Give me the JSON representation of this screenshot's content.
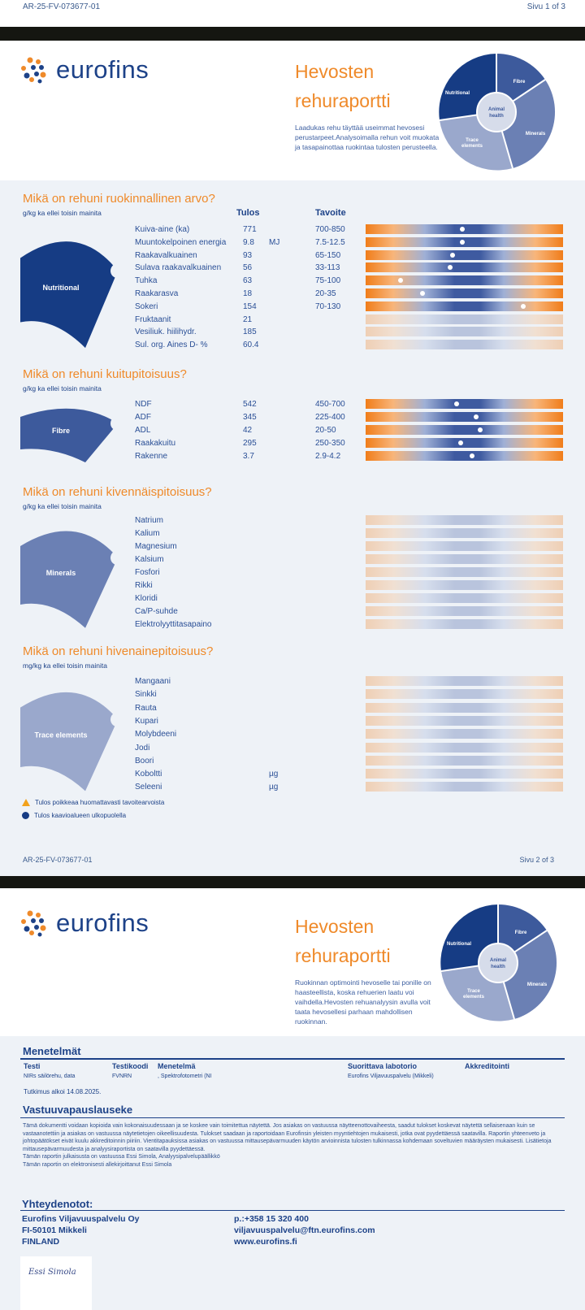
{
  "page1_header": {
    "doc_id": "AR-25-FV-073677-01",
    "page": "Sivu 1 of 3"
  },
  "logo_text": "eurofins",
  "puzzle": {
    "nutritional": "Nutritional",
    "fibre": "Fibre",
    "animal_health_1": "Animal",
    "animal_health_2": "health",
    "minerals": "Minerals",
    "trace_1": "Trace",
    "trace_2": "elements"
  },
  "page2": {
    "title_1": "Hevosten",
    "title_2": "rehuraportti",
    "description": "Laadukas rehu täyttää useimmat hevosesi perustarpeet.Analysoimalla rehun voit muokata ja tasapainottaa ruokintaa tulosten perusteella.",
    "col_result": "Tulos",
    "col_target": "Tavoite",
    "colors": {
      "orange": "#f07d1a",
      "blue": "#3e5aa0"
    },
    "sections": [
      {
        "heading": "Mikä on rehuni ruokinnallinen arvo?",
        "unit_note": "g/kg ka ellei toisin mainita",
        "piece": "Nutritional",
        "rows": [
          {
            "name": "Kuiva-aine (ka)",
            "result": "771",
            "unit": "",
            "target": "700-850",
            "marker": 0.49
          },
          {
            "name": "Muuntokelpoinen energia",
            "result": "9.8",
            "unit": "MJ",
            "target": "7.5-12.5",
            "marker": 0.49
          },
          {
            "name": "Raakavalkuainen",
            "result": "93",
            "unit": "",
            "target": "65-150",
            "marker": 0.44
          },
          {
            "name": "Sulava raakavalkuainen",
            "result": "56",
            "unit": "",
            "target": "33-113",
            "marker": 0.43
          },
          {
            "name": "Tuhka",
            "result": "63",
            "unit": "",
            "target": "75-100",
            "marker": 0.175
          },
          {
            "name": "Raakarasva",
            "result": "18",
            "unit": "",
            "target": "20-35",
            "marker": 0.29
          },
          {
            "name": "Sokeri",
            "result": "154",
            "unit": "",
            "target": "70-130",
            "marker": 0.8
          },
          {
            "name": "Fruktaanit",
            "result": "21",
            "unit": "",
            "target": ""
          },
          {
            "name": "Vesiliuk. hiilihydr.",
            "result": "185",
            "unit": "",
            "target": ""
          },
          {
            "name": "Sul. org. Aines D- %",
            "result": "60.4",
            "unit": "",
            "target": ""
          }
        ]
      },
      {
        "heading": "Mikä on rehuni kuitupitoisuus?",
        "unit_note": "g/kg ka ellei toisin mainita",
        "piece": "Fibre",
        "rows": [
          {
            "name": "NDF",
            "result": "542",
            "unit": "",
            "target": "450-700",
            "marker": 0.46
          },
          {
            "name": "ADF",
            "result": "345",
            "unit": "",
            "target": "225-400",
            "marker": 0.56
          },
          {
            "name": "ADL",
            "result": "42",
            "unit": "",
            "target": "20-50",
            "marker": 0.58
          },
          {
            "name": "Raakakuitu",
            "result": "295",
            "unit": "",
            "target": "250-350",
            "marker": 0.48
          },
          {
            "name": "Rakenne",
            "result": "3.7",
            "unit": "",
            "target": "2.9-4.2",
            "marker": 0.54
          }
        ]
      },
      {
        "heading": "Mikä on rehuni kivennäispitoisuus?",
        "unit_note": "g/kg ka ellei toisin mainita",
        "piece": "Minerals",
        "rows": [
          {
            "name": "Natrium",
            "result": "",
            "unit": "",
            "target": ""
          },
          {
            "name": "Kalium",
            "result": "",
            "unit": "",
            "target": ""
          },
          {
            "name": "Magnesium",
            "result": "",
            "unit": "",
            "target": ""
          },
          {
            "name": "Kalsium",
            "result": "",
            "unit": "",
            "target": ""
          },
          {
            "name": "Fosfori",
            "result": "",
            "unit": "",
            "target": ""
          },
          {
            "name": "Rikki",
            "result": "",
            "unit": "",
            "target": ""
          },
          {
            "name": "Kloridi",
            "result": "",
            "unit": "",
            "target": ""
          },
          {
            "name": "Ca/P-suhde",
            "result": "",
            "unit": "",
            "target": ""
          },
          {
            "name": "Elektrolyyttitasapaino",
            "result": "",
            "unit": "",
            "target": ""
          }
        ]
      },
      {
        "heading": "Mikä on rehuni hivenainepitoisuus?",
        "unit_note": "mg/kg ka ellei toisin mainita",
        "piece": "Trace elements",
        "rows": [
          {
            "name": "Mangaani",
            "result": "",
            "unit": "",
            "target": ""
          },
          {
            "name": "Sinkki",
            "result": "",
            "unit": "",
            "target": ""
          },
          {
            "name": "Rauta",
            "result": "",
            "unit": "",
            "target": ""
          },
          {
            "name": "Kupari",
            "result": "",
            "unit": "",
            "target": ""
          },
          {
            "name": "Molybdeeni",
            "result": "",
            "unit": "",
            "target": ""
          },
          {
            "name": "Jodi",
            "result": "",
            "unit": "",
            "target": ""
          },
          {
            "name": "Boori",
            "result": "",
            "unit": "",
            "target": ""
          },
          {
            "name": "Koboltti",
            "result": "",
            "unit": "µg",
            "target": ""
          },
          {
            "name": "Seleeni",
            "result": "",
            "unit": "µg",
            "target": ""
          }
        ]
      }
    ],
    "legend": {
      "warning": "Tulos poikkeaa huomattavasti tavoitearvoista",
      "outside": "Tulos kaavioalueen ulkopuolella"
    },
    "footer_id": "AR-25-FV-073677-01",
    "footer_page": "Sivu 2 of 3"
  },
  "page3": {
    "title_1": "Hevosten",
    "title_2": "rehuraportti",
    "description": "Ruokinnan optimointi hevoselle tai ponille on haasteellista, koska rehuerien laatu voi vaihdella.Hevosten rehuanalyysin avulla voit taata hevosellesi parhaan mahdollisen ruokinnan.",
    "methods": {
      "heading": "Menetelmät",
      "col_test": "Testi",
      "col_code": "Testikoodi",
      "col_method": "Menetelmä",
      "col_lab": "Suorittava labotorio",
      "col_accr": "Akkreditointi",
      "test": "NIRs säilörehu, data",
      "code": "FVNRN",
      "method": ", Spektrofotometri (NI",
      "lab": "Eurofins Viljavuuspalvelu (Mikkeli)",
      "accr": "",
      "started": "Tutkimus alkoi 14.08.2025."
    },
    "disclaimer": {
      "heading": "Vastuuvapauslauseke",
      "text": "Tämä dokumentti voidaan kopioida vain kokonaisuudessaan ja se koskee vain toimitettua näytettä. Jos asiakas on vastuussa näytteenottovaiheesta, saadut tulokset koskevat näytettä sellaisenaan kuin se vastaanotettiin ja asiakas on vastuussa näytetietojen oikeellisuudesta. Tulokset saadaan ja raportoidaan Eurofinsin yleisten myyntiehtojen mukaisesti, jotka ovat pyydettäessä saatavilla. Raportin yhteenveto ja johtopäätökset eivät kuulu akkreditoinnin piiriin. Vientitapauksissa asiakas on vastuussa mittausepävarmuuden käytön arvioinnista tulosten tulkinnassa kohdemaan soveltuvien määräysten mukaisesti. Lisätietoja mittausepävarmuudesta ja analyysiraportista on saatavilla pyydettäessä.",
      "line2": "Tämän raportin julkaisusta on vastuussa  Essi Simola, Analyysipalvelupäällikkö",
      "line3": "Tämän raportin on elektronisesti allekirjoittanut Essi Simola"
    },
    "contacts": {
      "heading": "Yhteydenotot:",
      "company": "Eurofins Viljavuuspalvelu Oy",
      "postal": "FI-50101 Mikkeli",
      "country": "FINLAND",
      "phone": "p.:+358 15 320 400",
      "email": "viljavuuspalvelu@ftn.eurofins.com",
      "web": "www.eurofins.fi"
    },
    "signature": "Essi Simola"
  }
}
